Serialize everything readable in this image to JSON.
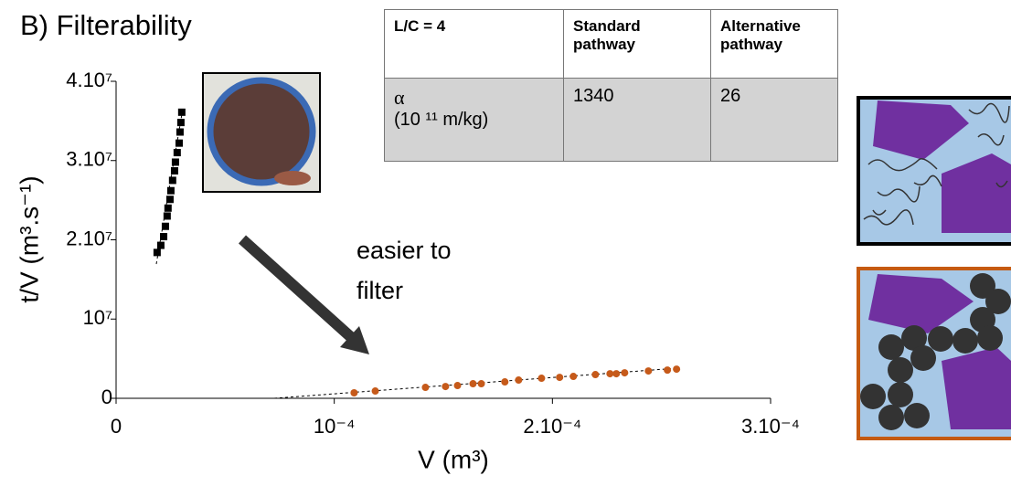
{
  "chart_data": {
    "type": "scatter",
    "title": "B) Filterability",
    "xlabel": "V (m³)",
    "ylabel": "t/V (m³.s⁻¹)",
    "annotation": [
      "easier to",
      "filter"
    ],
    "xlim": [
      0,
      0.0003
    ],
    "ylim": [
      0,
      40000000
    ],
    "xticks": [
      0,
      {
        "value": 0.0001,
        "label": "10⁻⁴"
      },
      {
        "value": 0.0002,
        "label": "2.10⁻⁴"
      },
      {
        "value": 0.0003,
        "label": "3.10⁻⁴"
      }
    ],
    "yticks": [
      0,
      {
        "value": 10000000,
        "label": "10⁷"
      },
      {
        "value": 20000000,
        "label": "2.10⁷"
      },
      {
        "value": 30000000,
        "label": "3.10⁷"
      },
      {
        "value": 40000000,
        "label": "4.10⁷"
      }
    ],
    "series": [
      {
        "color": "#000000",
        "x": [
          1.88e-05,
          2.05e-05,
          2.18e-05,
          2.26e-05,
          2.34e-05,
          2.38e-05,
          2.47e-05,
          2.51e-05,
          2.59e-05,
          2.68e-05,
          2.72e-05,
          2.8e-05,
          2.89e-05,
          2.93e-05,
          2.97e-05,
          3.01e-05
        ],
        "values": [
          18400000,
          19300000,
          20400000,
          21700000,
          23000000,
          24000000,
          25100000,
          26200000,
          27500000,
          28700000,
          29800000,
          31000000,
          32200000,
          33600000,
          34800000,
          36100000
        ]
      },
      {
        "color": "#c65a1a",
        "x": [
          0.0001091,
          0.0001188,
          0.0001418,
          0.000151,
          0.0001565,
          0.0001636,
          0.0001674,
          0.0001782,
          0.0001845,
          0.000195,
          0.0002033,
          0.0002096,
          0.0002197,
          0.0002264,
          0.0002293,
          0.0002331,
          0.000244,
          0.0002527,
          0.0002569
        ],
        "values": [
          690000,
          920000,
          1380000,
          1490000,
          1610000,
          1840000,
          1840000,
          2070000,
          2300000,
          2530000,
          2640000,
          2760000,
          2990000,
          3100000,
          3100000,
          3220000,
          3450000,
          3560000,
          3680000
        ]
      }
    ]
  },
  "table": {
    "header": [
      "L/C = 4",
      "Standard pathway",
      "Alternative pathway"
    ],
    "row": {
      "label": [
        "α",
        "(10 ¹¹ m/kg)"
      ],
      "values": [
        1340,
        26
      ]
    }
  }
}
